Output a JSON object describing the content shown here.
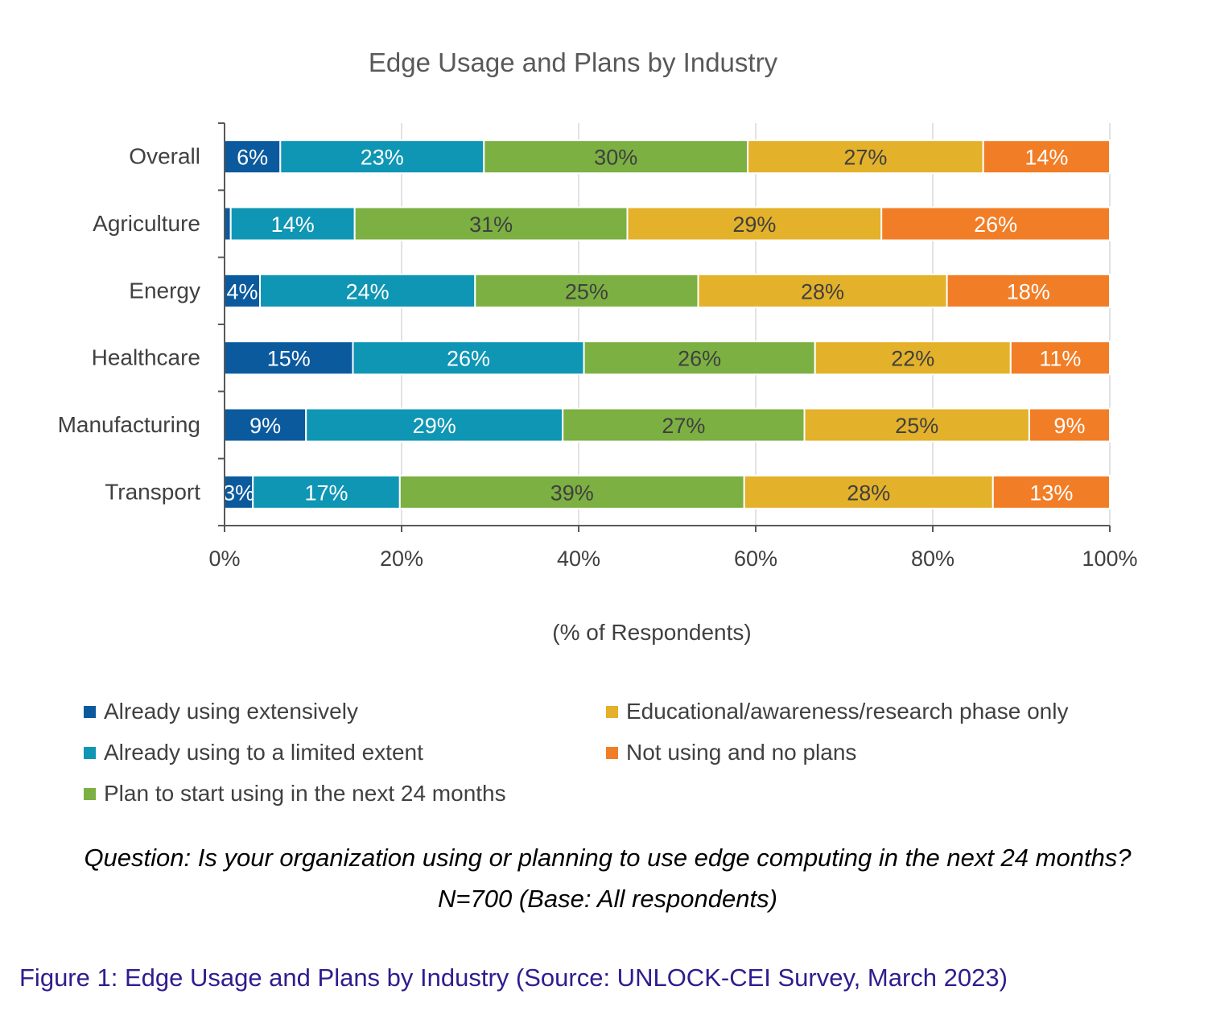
{
  "chart_data": {
    "type": "bar",
    "orientation": "horizontal",
    "stacked": true,
    "title": "Edge Usage and Plans by Industry",
    "xlabel": "(% of Respondents)",
    "ylabel": "",
    "xlim": [
      0,
      100
    ],
    "x_ticks": [
      "0%",
      "20%",
      "40%",
      "60%",
      "80%",
      "100%"
    ],
    "categories": [
      "Overall",
      "Agriculture",
      "Energy",
      "Healthcare",
      "Manufacturing",
      "Transport"
    ],
    "series": [
      {
        "name": "Already using extensively",
        "color": "#0c5a9e",
        "values": [
          6.3,
          0.7,
          4,
          14.5,
          9.2,
          3.2
        ],
        "labels": [
          "6%",
          "",
          "4%",
          "15%",
          "9%",
          "3%"
        ]
      },
      {
        "name": "Already using to a limited extent",
        "color": "#0f96b4",
        "values": [
          23,
          14,
          24.3,
          26.1,
          29,
          16.6
        ],
        "labels": [
          "23%",
          "14%",
          "24%",
          "26%",
          "29%",
          "17%"
        ]
      },
      {
        "name": "Plan to start using in the next 24 months",
        "color": "#7cb042",
        "values": [
          29.8,
          30.8,
          25.2,
          26.1,
          27.3,
          38.9
        ],
        "labels": [
          "30%",
          "31%",
          "25%",
          "26%",
          "27%",
          "39%"
        ]
      },
      {
        "name": "Educational/awareness/research phase only",
        "color": "#e3b12a",
        "values": [
          26.6,
          28.7,
          28.1,
          22.1,
          25.4,
          28.1
        ],
        "labels": [
          "27%",
          "29%",
          "28%",
          "22%",
          "25%",
          "28%"
        ]
      },
      {
        "name": "Not using and no plans",
        "color": "#f17e27",
        "values": [
          14.3,
          25.8,
          18.4,
          11.2,
          9.1,
          13.2
        ],
        "labels": [
          "14%",
          "26%",
          "18%",
          "11%",
          "9%",
          "13%"
        ]
      }
    ],
    "legend_position": "bottom",
    "grid": true
  },
  "legend": {
    "items": [
      {
        "label": "Already using extensively",
        "color": "#0c5a9e"
      },
      {
        "label": "Educational/awareness/research phase only",
        "color": "#e3b12a"
      },
      {
        "label": "Already using to a limited extent",
        "color": "#0f96b4"
      },
      {
        "label": "Not using and no plans",
        "color": "#f17e27"
      },
      {
        "label": "Plan to start using in the next 24 months",
        "color": "#7cb042"
      }
    ]
  },
  "question": "Question: Is your organization using or planning to use edge computing in the next 24 months? N=700 (Base: All respondents)",
  "caption": "Figure 1: Edge Usage and Plans by Industry (Source: UNLOCK-CEI Survey, March 2023)"
}
